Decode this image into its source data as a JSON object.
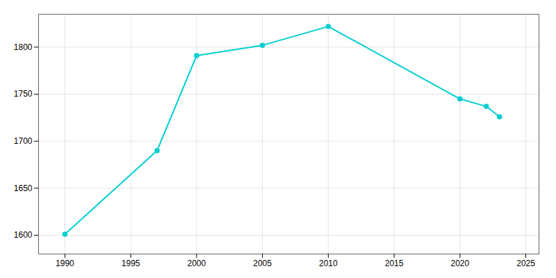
{
  "chart_data": {
    "type": "line",
    "x": [
      1990,
      1997,
      2000,
      2005,
      2010,
      2020,
      2022,
      2023
    ],
    "values": [
      1601,
      1690,
      1791,
      1802,
      1822,
      1745,
      1737,
      1726
    ],
    "color": "#00CED1",
    "marker": "circle",
    "xlim": [
      1988,
      2026
    ],
    "ylim": [
      1580,
      1835
    ],
    "xticks": [
      1990,
      1995,
      2000,
      2005,
      2010,
      2015,
      2020,
      2025
    ],
    "yticks": [
      1600,
      1650,
      1700,
      1750,
      1800
    ],
    "grid": true
  }
}
